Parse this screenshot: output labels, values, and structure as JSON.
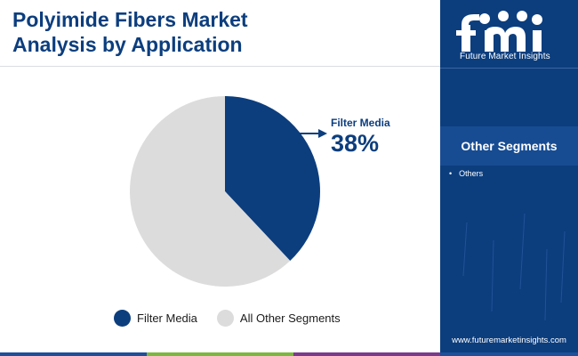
{
  "header": {
    "title_line1": "Polyimide Fibers Market",
    "title_line2": "Analysis by Application"
  },
  "chart_data": {
    "type": "pie",
    "title": "Polyimide Fibers Market Analysis by Application",
    "slices": [
      {
        "label": "Filter Media",
        "value": 38,
        "color": "#0c3e7e"
      },
      {
        "label": "All Other Segments",
        "value": 62,
        "color": "#dcdcdc"
      }
    ],
    "callout": {
      "label": "Filter Media",
      "value_text": "38%"
    },
    "legend_placement": "bottom"
  },
  "legend": {
    "items": [
      {
        "label": "Filter Media",
        "color": "#0c3e7e"
      },
      {
        "label": "All Other Segments",
        "color": "#dcdcdc"
      }
    ]
  },
  "sidebar": {
    "logo_text": "Future Market Insights",
    "segments_heading": "Other Segments",
    "segments": [
      "Others"
    ],
    "website": "www.futuremarketinsights.com"
  },
  "colors": {
    "brand": "#0c3e7e",
    "bar_segments": [
      "#1d4f9a",
      "#7bb83f",
      "#7a3b8c",
      "#1d4f9a"
    ]
  }
}
